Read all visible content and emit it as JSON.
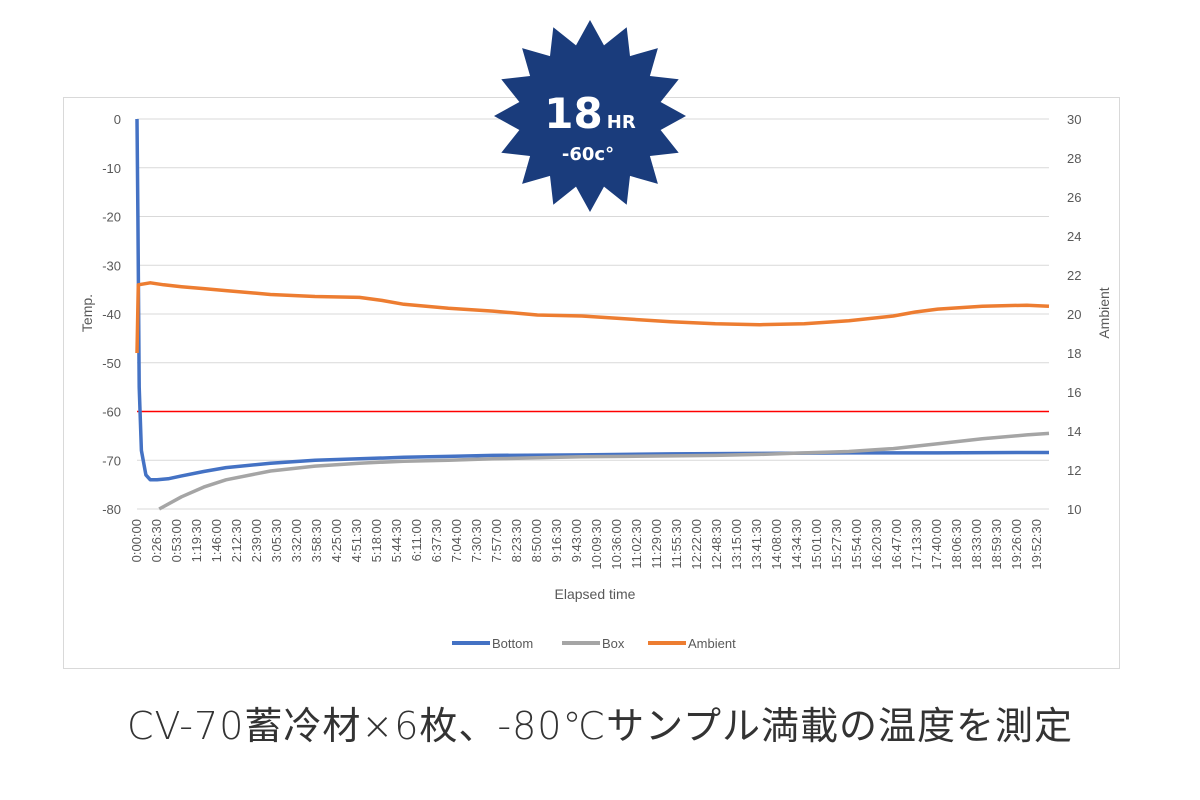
{
  "badge": {
    "hours": "18",
    "hours_unit": "HR",
    "temp": "-60c°",
    "color": "#1a3c7c"
  },
  "caption": "CV-70蓄冷材×6枚、-80℃サンプル満載の温度を測定",
  "chart_data": {
    "type": "line",
    "xlabel": "Elapsed time",
    "ylabel": "Temp.",
    "y2label": "Ambient",
    "ylim": [
      -80,
      0
    ],
    "y_ticks": [
      0,
      -10,
      -20,
      -30,
      -40,
      -50,
      -60,
      -70,
      -80
    ],
    "y2lim": [
      10,
      30
    ],
    "y2_ticks": [
      30,
      28,
      26,
      24,
      22,
      20,
      18,
      16,
      14,
      12,
      10
    ],
    "x_hours_max": 20.5,
    "x_tick_labels": [
      "0:00:00",
      "0:26:30",
      "0:53:00",
      "1:19:30",
      "1:46:00",
      "2:12:30",
      "2:39:00",
      "3:05:30",
      "3:32:00",
      "3:58:30",
      "4:25:00",
      "4:51:30",
      "5:18:00",
      "5:44:30",
      "6:11:00",
      "6:37:30",
      "7:04:00",
      "7:30:30",
      "7:57:00",
      "8:23:30",
      "8:50:00",
      "9:16:30",
      "9:43:00",
      "10:09:30",
      "10:36:00",
      "11:02:30",
      "11:29:00",
      "11:55:30",
      "12:22:00",
      "12:48:30",
      "13:15:00",
      "13:41:30",
      "14:08:00",
      "14:34:30",
      "15:01:00",
      "15:27:30",
      "15:54:00",
      "16:20:30",
      "16:47:00",
      "17:13:30",
      "17:40:00",
      "18:06:30",
      "18:33:00",
      "18:59:30",
      "19:26:00",
      "19:52:30"
    ],
    "threshold": {
      "value": -60,
      "color": "#ff0000"
    },
    "series": [
      {
        "name": "Bottom",
        "color": "#4472c4",
        "axis": "left",
        "x": [
          0,
          0.02,
          0.05,
          0.1,
          0.2,
          0.3,
          0.45,
          0.7,
          1,
          1.5,
          2,
          3,
          4,
          5,
          6,
          7,
          8,
          10,
          12,
          14,
          16,
          18,
          20,
          20.5
        ],
        "y": [
          0,
          -20,
          -55,
          -68,
          -73,
          -74,
          -74,
          -73.8,
          -73.2,
          -72.3,
          -71.5,
          -70.6,
          -70,
          -69.7,
          -69.4,
          -69.2,
          -69,
          -68.9,
          -68.7,
          -68.6,
          -68.5,
          -68.5,
          -68.4,
          -68.4
        ]
      },
      {
        "name": "Box",
        "color": "#a5a5a5",
        "axis": "left",
        "x": [
          0.5,
          1,
          1.5,
          2,
          3,
          4,
          5,
          6,
          7,
          8,
          9,
          10,
          11,
          12,
          13,
          14,
          15,
          16,
          17,
          18,
          19,
          20,
          20.5
        ],
        "y": [
          -80,
          -77.5,
          -75.5,
          -74,
          -72.2,
          -71.2,
          -70.6,
          -70.2,
          -70,
          -69.7,
          -69.5,
          -69.3,
          -69.2,
          -69.1,
          -69,
          -68.8,
          -68.5,
          -68.2,
          -67.6,
          -66.6,
          -65.6,
          -64.8,
          -64.5
        ]
      },
      {
        "name": "Ambient",
        "color": "#ed7d31",
        "axis": "right",
        "x": [
          0,
          0.03,
          0.3,
          0.6,
          1,
          1.5,
          2,
          3,
          4,
          5,
          5.5,
          6,
          7,
          8,
          9,
          10,
          11,
          12,
          13,
          14,
          15,
          16,
          17,
          17.5,
          18,
          19,
          20,
          20.5
        ],
        "y": [
          18,
          21.5,
          21.6,
          21.5,
          21.4,
          21.3,
          21.2,
          21.0,
          20.9,
          20.85,
          20.7,
          20.5,
          20.3,
          20.15,
          19.95,
          19.9,
          19.75,
          19.6,
          19.5,
          19.45,
          19.5,
          19.65,
          19.9,
          20.1,
          20.25,
          20.4,
          20.45,
          20.4
        ]
      }
    ]
  }
}
